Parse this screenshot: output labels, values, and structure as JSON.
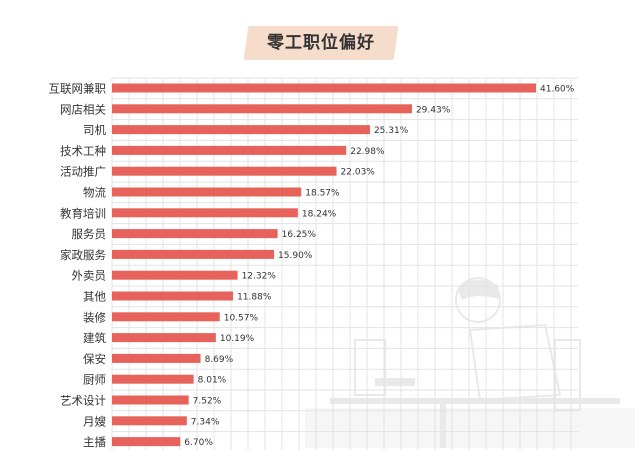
{
  "colors": {
    "bar": "#e8625c",
    "grid": "#e3e3e3",
    "text": "#333333",
    "title_bg": "#f6dccb",
    "illustration": "#d8d8d8"
  },
  "chart_data": {
    "type": "bar",
    "orientation": "horizontal",
    "title": "零工职位偏好",
    "xlabel": "",
    "ylabel": "",
    "xlim": [
      0,
      42
    ],
    "grid": true,
    "unit": "%",
    "categories": [
      "互联网兼职",
      "网店相关",
      "司机",
      "技术工种",
      "活动推广",
      "物流",
      "教育培训",
      "服务员",
      "家政服务",
      "外卖员",
      "其他",
      "装修",
      "建筑",
      "保安",
      "厨师",
      "艺术设计",
      "月嫂",
      "主播"
    ],
    "values": [
      41.6,
      29.43,
      25.31,
      22.98,
      22.03,
      18.57,
      18.24,
      16.25,
      15.9,
      12.32,
      11.88,
      10.57,
      10.19,
      8.69,
      8.01,
      7.52,
      7.34,
      6.7
    ],
    "labels": [
      "41.60%",
      "29.43%",
      "25.31%",
      "22.98%",
      "22.03%",
      "18.57%",
      "18.24%",
      "16.25%",
      "15.90%",
      "12.32%",
      "11.88%",
      "10.57%",
      "10.19%",
      "8.69%",
      "8.01%",
      "7.52%",
      "7.34%",
      "6.70%"
    ]
  }
}
